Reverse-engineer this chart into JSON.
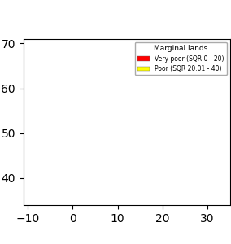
{
  "title": "Marginal lands",
  "legend_items": [
    {
      "label": "Very poor (SQR 0 - 20)",
      "color": "#FF0000"
    },
    {
      "label": "Poor (SQR 20.01 - 40)",
      "color": "#FFFF00"
    }
  ],
  "background_color": "#FFFFFF",
  "land_base_color": "#C0C0C0",
  "ocean_color": "#FFFFFF",
  "border_color": "#999999",
  "legend_box_color": "#FFFFFF",
  "legend_border_color": "#AAAAAA",
  "title_fontsize": 6.5,
  "legend_fontsize": 5.5,
  "figsize": [
    2.84,
    3.0
  ],
  "dpi": 100,
  "xlim": [
    -11,
    35
  ],
  "ylim": [
    34,
    71
  ],
  "map_extent": [
    -11,
    35,
    34,
    71
  ]
}
